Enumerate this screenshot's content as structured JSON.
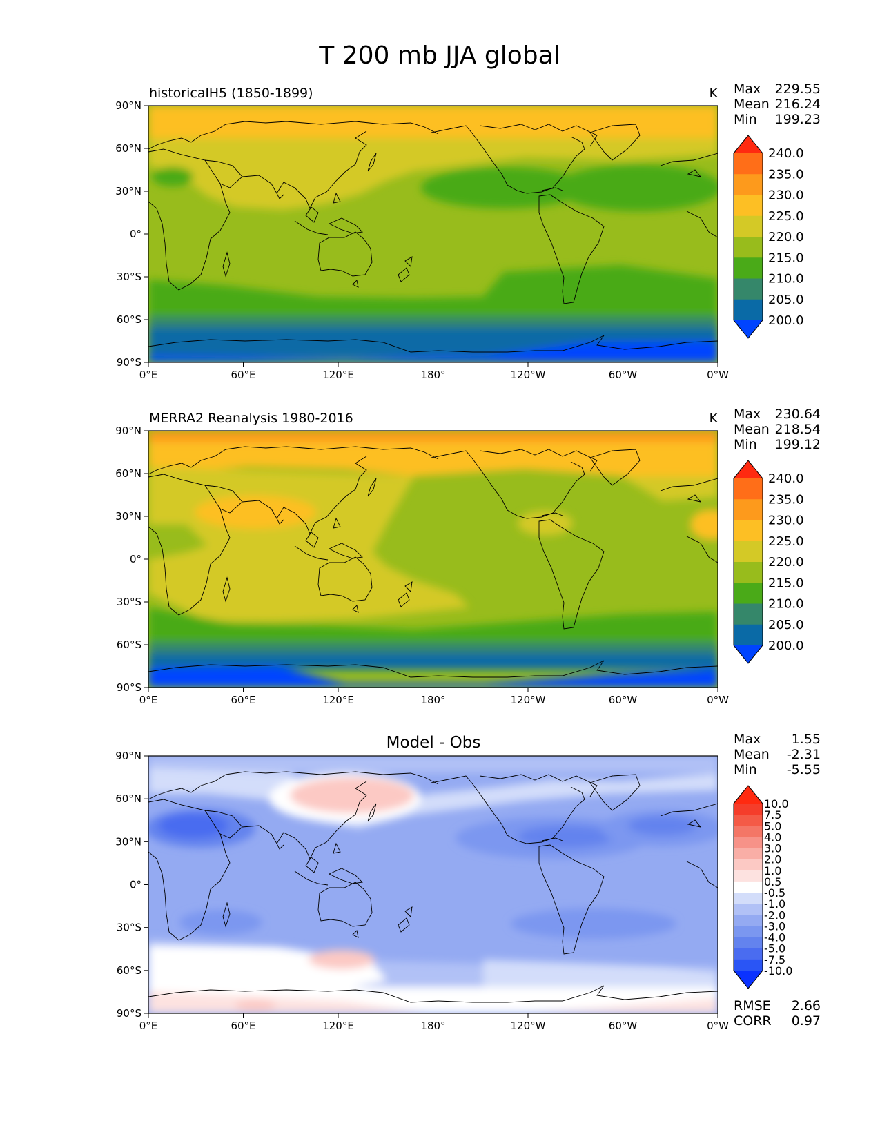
{
  "figure": {
    "title": "T 200 mb JJA global"
  },
  "axes": {
    "lon_ticks": [
      "0°E",
      "60°E",
      "120°E",
      "180°",
      "120°W",
      "60°W",
      "0°W"
    ],
    "lat_ticks": [
      "90°N",
      "60°N",
      "30°N",
      "0°",
      "30°S",
      "60°S",
      "90°S"
    ]
  },
  "panels": [
    {
      "id": "model",
      "left_title": "historicalH5 (1850-1899)",
      "units": "K",
      "stats": [
        {
          "label": "Max",
          "value": "229.55"
        },
        {
          "label": "Mean",
          "value": "216.24"
        },
        {
          "label": "Min",
          "value": "199.23"
        }
      ],
      "colorbar": {
        "levels": [
          "200.0",
          "205.0",
          "210.0",
          "215.0",
          "220.0",
          "225.0",
          "230.0",
          "235.0",
          "240.0"
        ],
        "colors": [
          "#0044ff",
          "#0a6aa6",
          "#35876a",
          "#4aaa18",
          "#98bc1c",
          "#d4c926",
          "#fdbf24",
          "#fd9a1c",
          "#ff6e18",
          "#ff2a10"
        ]
      }
    },
    {
      "id": "obs",
      "left_title": "MERRA2 Reanalysis 1980-2016",
      "units": "K",
      "stats": [
        {
          "label": "Max",
          "value": "230.64"
        },
        {
          "label": "Mean",
          "value": "218.54"
        },
        {
          "label": "Min",
          "value": "199.12"
        }
      ],
      "colorbar": {
        "levels": [
          "200.0",
          "205.0",
          "210.0",
          "215.0",
          "220.0",
          "225.0",
          "230.0",
          "235.0",
          "240.0"
        ],
        "colors": [
          "#0044ff",
          "#0a6aa6",
          "#35876a",
          "#4aaa18",
          "#98bc1c",
          "#d4c926",
          "#fdbf24",
          "#fd9a1c",
          "#ff6e18",
          "#ff2a10"
        ]
      }
    },
    {
      "id": "diff",
      "center_title": "Model - Obs",
      "stats": [
        {
          "label": "Max",
          "value": "1.55"
        },
        {
          "label": "Mean",
          "value": "-2.31"
        },
        {
          "label": "Min",
          "value": "-5.55"
        }
      ],
      "extra_stats": [
        {
          "label": "RMSE",
          "value": "2.66"
        },
        {
          "label": "CORR",
          "value": "0.97"
        }
      ],
      "colorbar": {
        "levels": [
          "-10.0",
          "-7.5",
          "-5.0",
          "-4.0",
          "-3.0",
          "-2.0",
          "-1.0",
          "-0.5",
          "0.5",
          "1.0",
          "2.0",
          "3.0",
          "4.0",
          "5.0",
          "7.5",
          "10.0"
        ],
        "colors": [
          "#0a32ff",
          "#2a55f5",
          "#4a6cf0",
          "#6383ee",
          "#7b97f0",
          "#94aaf2",
          "#b1c1f6",
          "#d3ddfa",
          "#ffffff",
          "#fde2e0",
          "#fcc9c4",
          "#f9aea6",
          "#f79288",
          "#f47666",
          "#f45a46",
          "#f53d2a",
          "#ff2a10"
        ]
      }
    }
  ]
}
